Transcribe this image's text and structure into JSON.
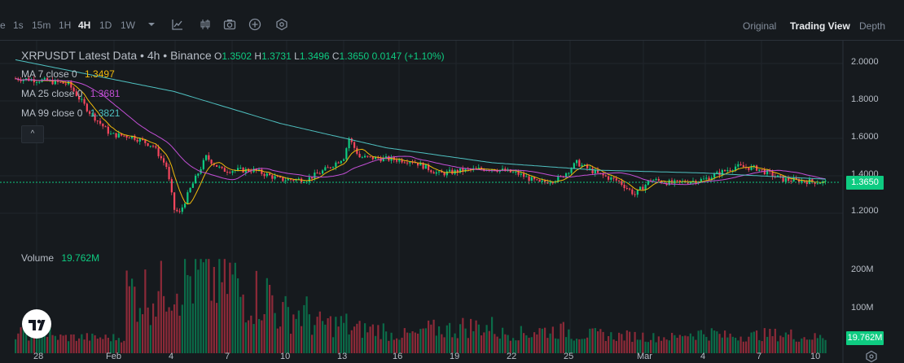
{
  "toolbar": {
    "timeframes": [
      "1s",
      "15m",
      "1H",
      "4H",
      "1D",
      "1W"
    ],
    "active_timeframe": "4H",
    "partial_left": "e",
    "views": [
      "Original",
      "Trading View",
      "Depth"
    ],
    "active_view": "Trading View",
    "icons": [
      "chevron-down-icon",
      "indicator-icon",
      "candlestick-icon",
      "camera-icon",
      "add-icon",
      "settings-hex-icon"
    ]
  },
  "legend": {
    "title": "XRPUSDT Latest Data • 4h • Binance",
    "o_label": "O",
    "o": "1.3502",
    "h_label": "H",
    "h": "1.3731",
    "l_label": "L",
    "l": "1.3496",
    "c_label": "C",
    "c": "1.3650",
    "change": "0.0147 (+1.10%)",
    "ma7_label": "MA 7 close 0",
    "ma7": "1.3497",
    "ma25_label": "MA 25 close 0",
    "ma25": "1.3681",
    "ma99_label": "MA 99 close 0",
    "ma99": "1.3821",
    "volume_label": "Volume",
    "volume": "19.762M",
    "collapse_glyph": "^"
  },
  "price_axis": [
    "2.0000",
    "1.8000",
    "1.6000",
    "1.4000",
    "1.2000"
  ],
  "current_price": "1.3650",
  "volume_axis": [
    "200M",
    "100M"
  ],
  "current_volume": "19.762M",
  "time_axis": [
    "28",
    "Feb",
    "4",
    "7",
    "10",
    "13",
    "16",
    "19",
    "22",
    "25",
    "Mar",
    "4",
    "7",
    "10"
  ],
  "colors": {
    "up": "#0ecb81",
    "down": "#f6465d",
    "ma7": "#f0b90b",
    "ma25": "#c34fd6",
    "ma99": "#4fc1c1",
    "bg": "#161a1e"
  },
  "chart_data": {
    "type": "candlestick",
    "x_start": "2025-01-27",
    "interval": "4h",
    "ylim": [
      1.1,
      2.1
    ],
    "close_anchors": [
      [
        0,
        1.92
      ],
      [
        10,
        1.91
      ],
      [
        20,
        1.89
      ],
      [
        28,
        1.74
      ],
      [
        36,
        1.62
      ],
      [
        44,
        1.61
      ],
      [
        52,
        1.56
      ],
      [
        57,
        1.45
      ],
      [
        60,
        1.22
      ],
      [
        62,
        1.2
      ],
      [
        66,
        1.33
      ],
      [
        72,
        1.5
      ],
      [
        78,
        1.43
      ],
      [
        90,
        1.43
      ],
      [
        100,
        1.38
      ],
      [
        110,
        1.38
      ],
      [
        118,
        1.44
      ],
      [
        124,
        1.5
      ],
      [
        126,
        1.6
      ],
      [
        130,
        1.5
      ],
      [
        140,
        1.49
      ],
      [
        150,
        1.48
      ],
      [
        160,
        1.41
      ],
      [
        170,
        1.43
      ],
      [
        180,
        1.44
      ],
      [
        190,
        1.41
      ],
      [
        198,
        1.36
      ],
      [
        206,
        1.39
      ],
      [
        212,
        1.47
      ],
      [
        220,
        1.41
      ],
      [
        228,
        1.37
      ],
      [
        234,
        1.3
      ],
      [
        240,
        1.38
      ],
      [
        248,
        1.36
      ],
      [
        260,
        1.38
      ],
      [
        272,
        1.45
      ],
      [
        280,
        1.44
      ],
      [
        290,
        1.38
      ],
      [
        300,
        1.37
      ],
      [
        306,
        1.365
      ]
    ],
    "ma99_anchors": [
      [
        0,
        2.02
      ],
      [
        60,
        1.85
      ],
      [
        100,
        1.68
      ],
      [
        140,
        1.55
      ],
      [
        180,
        1.47
      ],
      [
        220,
        1.43
      ],
      [
        260,
        1.415
      ],
      [
        306,
        1.382
      ]
    ],
    "volume_M": [
      45,
      30,
      28,
      200,
      215,
      250,
      190,
      120,
      80,
      60,
      40,
      60,
      70,
      45,
      55,
      40,
      35,
      30,
      45,
      35,
      40,
      30
    ],
    "series": [
      {
        "name": "MA 7 close 0",
        "last": 1.3497
      },
      {
        "name": "MA 25 close 0",
        "last": 1.3681
      },
      {
        "name": "MA 99 close 0",
        "last": 1.3821
      }
    ]
  }
}
